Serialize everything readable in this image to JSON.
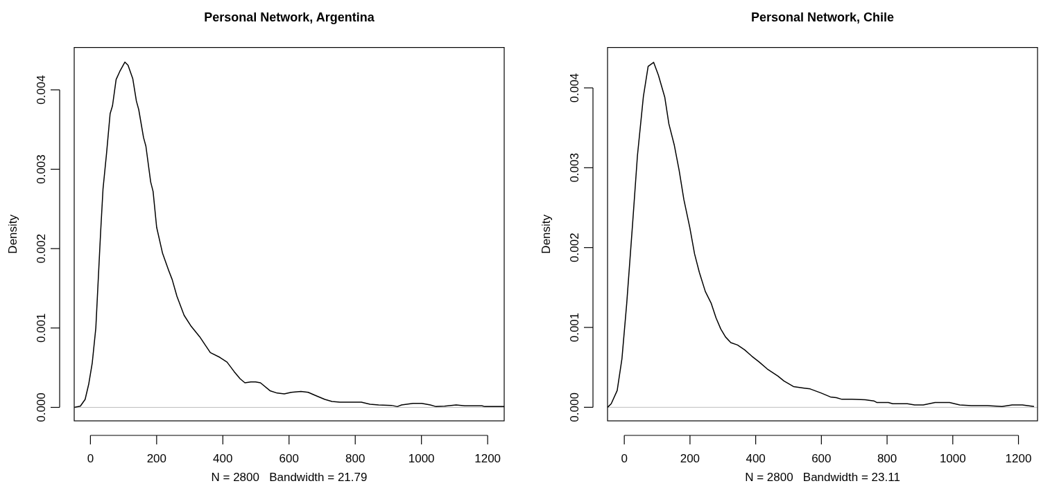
{
  "chart_data": [
    {
      "type": "line",
      "title": "Personal Network, Argentina",
      "xlabel": "N = 2800   Bandwidth = 21.79",
      "ylabel": "Density",
      "x": [
        -48.6,
        -30.5,
        -16,
        -5.3,
        5.5,
        16.3,
        23.5,
        30.7,
        38,
        48.7,
        59.5,
        66.7,
        77.6,
        88.4,
        104.2,
        113.6,
        128,
        138.8,
        146,
        160.4,
        167.6,
        182,
        189.3,
        200,
        218,
        236,
        247,
        261.3,
        283,
        304.6,
        330,
        347.8,
        362.2,
        391,
        412.7,
        434.3,
        452.3,
        466.7,
        484.7,
        499,
        513.6,
        542.4,
        564,
        585.7,
        607,
        636,
        657.7,
        679.4,
        708.2,
        729.8,
        753.4,
        818.5,
        844.7,
        870.6,
        909.6,
        927,
        940,
        974.6,
        1000.7,
        1026.8,
        1044,
        1070,
        1104.9,
        1130.8,
        1183,
        1191.5,
        1250
      ],
      "series": [
        {
          "color": "#000000",
          "values": [
            0,
            1.5e-05,
            0.0001,
            0.00029,
            0.00056,
            0.001,
            0.0016,
            0.0022,
            0.00275,
            0.0032,
            0.0037,
            0.0038,
            0.00413,
            0.00423,
            0.00435,
            0.00431,
            0.00414,
            0.00386,
            0.00375,
            0.0034,
            0.00329,
            0.00284,
            0.00272,
            0.00227,
            0.00194,
            0.00173,
            0.00161,
            0.0014,
            0.00116,
            0.00102,
            0.00089,
            0.00078,
            0.00069,
            0.00063,
            0.00057,
            0.00045,
            0.00036,
            0.00031,
            0.00032,
            0.00032,
            0.00031,
            0.00021,
            0.00018,
            0.00017,
            0.00019,
            0.0002,
            0.00019,
            0.00015,
            0.0001,
            7.5e-05,
            6.5e-05,
            6.5e-05,
            4e-05,
            3e-05,
            2.5e-05,
            1e-05,
            3e-05,
            5e-05,
            5e-05,
            3e-05,
            1e-05,
            1.5e-05,
            3e-05,
            2e-05,
            2e-05,
            1e-05,
            1e-05
          ]
        }
      ],
      "xlim": [
        -49,
        1250
      ],
      "xticks": [
        0,
        200,
        400,
        600,
        800,
        1000,
        1200
      ],
      "ylim": [
        -0.00017,
        0.004534
      ],
      "yticks": [
        {
          "value": 0,
          "label": "0.000"
        },
        {
          "value": 0.001,
          "label": "0.001"
        },
        {
          "value": 0.002,
          "label": "0.002"
        },
        {
          "value": 0.003,
          "label": "0.003"
        },
        {
          "value": 0.004,
          "label": "0.004"
        }
      ],
      "ref_lines": [
        {
          "axis": "y",
          "value": 0,
          "color": "#bebebe"
        }
      ]
    },
    {
      "type": "line",
      "title": "Personal Network, Chile",
      "xlabel": "N = 2800   Bandwidth = 23.11",
      "ylabel": "Density",
      "x": [
        -50.7,
        -39.8,
        -21.6,
        -7.1,
        7.4,
        25.5,
        40,
        58.1,
        72.6,
        89.3,
        103.8,
        123.4,
        135.7,
        152.4,
        166.9,
        181.4,
        199.5,
        214,
        228.5,
        246.7,
        264.8,
        279.3,
        293.8,
        308.3,
        324.3,
        344.6,
        366.3,
        388.1,
        409.8,
        435.2,
        467.9,
        486,
        515,
        547.6,
        565.8,
        598.4,
        627.4,
        645.6,
        662.4,
        692.7,
        733,
        759.7,
        768.5,
        803.9,
        817.2,
        861.6,
        883.7,
        910.3,
        945.9,
        990.2,
        1021.2,
        1056.7,
        1105.4,
        1149.7,
        1180.8,
        1211.8,
        1247.3
      ],
      "series": [
        {
          "color": "#000000",
          "values": [
            0,
            4.5e-05,
            0.00021,
            0.00061,
            0.0013,
            0.00231,
            0.00315,
            0.00389,
            0.00427,
            0.00432,
            0.00416,
            0.00388,
            0.00355,
            0.00328,
            0.00297,
            0.0026,
            0.00225,
            0.00192,
            0.00169,
            0.00145,
            0.0013,
            0.00112,
            0.00098,
            0.00088,
            0.00081,
            0.00078,
            0.00072,
            0.00064,
            0.00057,
            0.00048,
            0.00039,
            0.00033,
            0.00026,
            0.00024,
            0.00023,
            0.00018,
            0.00013,
            0.00012,
            0.0001,
            0.0001,
            9.5e-05,
            8e-05,
            6e-05,
            6e-05,
            4.4e-05,
            4.4e-05,
            3e-05,
            3e-05,
            6e-05,
            6e-05,
            3e-05,
            2e-05,
            2e-05,
            1e-05,
            3e-05,
            3e-05,
            1e-05
          ]
        }
      ],
      "xlim": [
        -51,
        1258
      ],
      "xticks": [
        0,
        200,
        400,
        600,
        800,
        1000,
        1200
      ],
      "ylim": [
        -0.00017,
        0.004506
      ],
      "yticks": [
        {
          "value": 0,
          "label": "0.000"
        },
        {
          "value": 0.001,
          "label": "0.001"
        },
        {
          "value": 0.002,
          "label": "0.002"
        },
        {
          "value": 0.003,
          "label": "0.003"
        },
        {
          "value": 0.004,
          "label": "0.004"
        }
      ],
      "ref_lines": [
        {
          "axis": "y",
          "value": 0,
          "color": "#bebebe"
        }
      ]
    }
  ]
}
